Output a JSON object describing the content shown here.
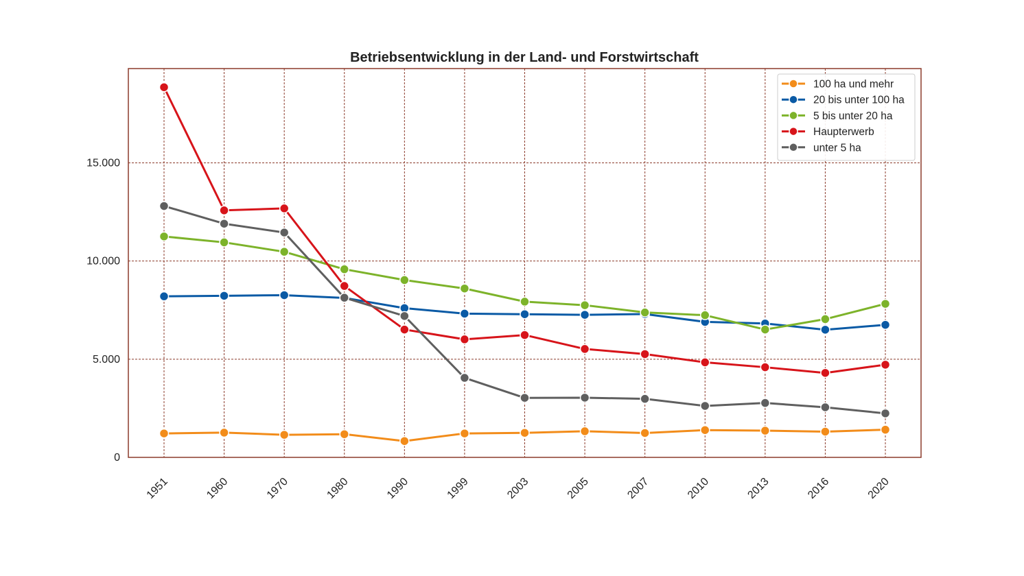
{
  "chart_data": {
    "type": "line",
    "title": "Betriebsentwicklung in der Land- und Forstwirtschaft",
    "xlabel": "",
    "ylabel": "",
    "categories": [
      "1951",
      "1960",
      "1970",
      "1980",
      "1990",
      "1999",
      "2003",
      "2005",
      "2007",
      "2010",
      "2013",
      "2016",
      "2020"
    ],
    "y_ticks": [
      0,
      5000,
      10000,
      15000
    ],
    "y_tick_labels": [
      "0",
      "5.000",
      "10.000",
      "15.000"
    ],
    "ylim": [
      0,
      19800
    ],
    "grid": true,
    "grid_color": "#8b3a2a",
    "frame_color": "#8b3a2a",
    "legend_position": "top-right",
    "series": [
      {
        "name": "100 ha und mehr",
        "color": "#f28c1a",
        "values": [
          1220,
          1260,
          1150,
          1180,
          830,
          1220,
          1250,
          1330,
          1240,
          1390,
          1360,
          1310,
          1410
        ]
      },
      {
        "name": "20 bis unter 100 ha",
        "color": "#0a5aa5",
        "values": [
          8200,
          8230,
          8260,
          8120,
          7600,
          7320,
          7290,
          7260,
          7300,
          6900,
          6820,
          6500,
          6750
        ]
      },
      {
        "name": "5 bis unter 20 ha",
        "color": "#7db32a",
        "values": [
          11250,
          10950,
          10470,
          9580,
          9030,
          8600,
          7930,
          7750,
          7380,
          7240,
          6510,
          7040,
          7820
        ]
      },
      {
        "name": "Haupterwerb",
        "color": "#d7141a",
        "values": [
          18850,
          12580,
          12680,
          8730,
          6510,
          6010,
          6230,
          5520,
          5260,
          4840,
          4590,
          4300,
          4720
        ]
      },
      {
        "name": "unter 5 ha",
        "color": "#5f5f5f",
        "values": [
          12800,
          11900,
          11450,
          8130,
          7200,
          4050,
          3030,
          3040,
          2980,
          2620,
          2770,
          2550,
          2240
        ]
      }
    ]
  }
}
